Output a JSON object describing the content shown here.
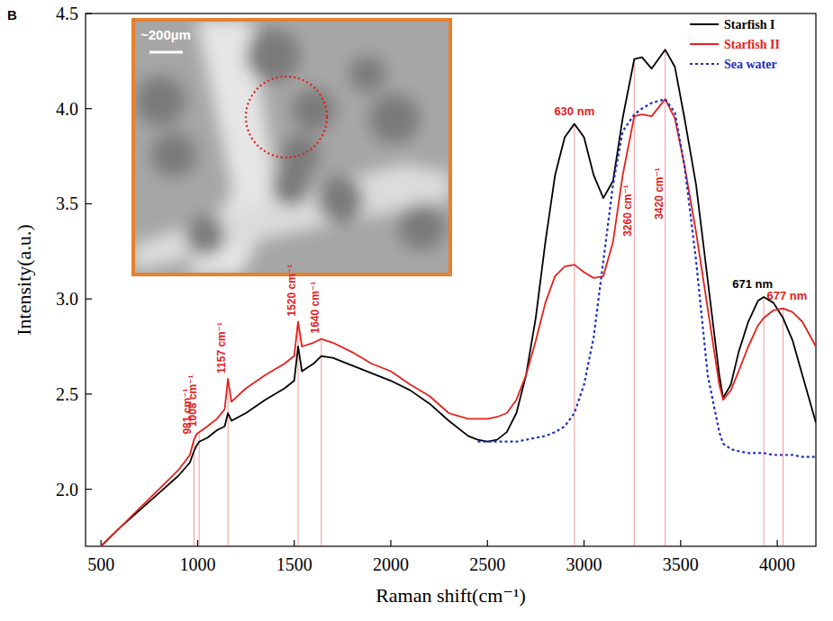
{
  "chart_data": {
    "type": "line",
    "panel": "B",
    "inset_label": "~200µm",
    "x_label": "Raman shift(cm⁻¹)",
    "y_label": "Intensity(a.u.)",
    "xlim": [
      420,
      4200
    ],
    "xticks": [
      500,
      1000,
      1500,
      2000,
      2500,
      3000,
      3500,
      4000
    ],
    "ylim": [
      1.7,
      4.5
    ],
    "yticks": [
      {
        "value": 2,
        "label": "2.0"
      },
      2.5,
      {
        "value": 3,
        "label": "3.0"
      },
      3.5,
      {
        "value": 4,
        "label": "4.0"
      },
      4.5
    ],
    "grid": false,
    "legend": "upper right",
    "x": [
      500,
      600,
      700,
      800,
      900,
      960,
      981,
      995,
      1008,
      1050,
      1100,
      1140,
      1157,
      1175,
      1250,
      1350,
      1450,
      1500,
      1520,
      1540,
      1600,
      1640,
      1700,
      1800,
      1900,
      2000,
      2100,
      2200,
      2300,
      2400,
      2450,
      2500,
      2550,
      2600,
      2650,
      2700,
      2750,
      2800,
      2850,
      2900,
      2950,
      3000,
      3050,
      3100,
      3150,
      3200,
      3260,
      3300,
      3350,
      3420,
      3470,
      3520,
      3580,
      3640,
      3700,
      3720,
      3760,
      3800,
      3850,
      3900,
      3930,
      3980,
      4030,
      4080,
      4130,
      4200
    ],
    "series": [
      {
        "name": "Starfish I",
        "color": "#000000",
        "line_style": "solid",
        "values": [
          1.7,
          1.8,
          1.89,
          1.98,
          2.07,
          2.14,
          2.2,
          2.23,
          2.25,
          2.27,
          2.31,
          2.33,
          2.4,
          2.36,
          2.4,
          2.47,
          2.53,
          2.57,
          2.75,
          2.62,
          2.66,
          2.7,
          2.69,
          2.65,
          2.61,
          2.57,
          2.52,
          2.45,
          2.36,
          2.28,
          2.26,
          2.25,
          2.26,
          2.3,
          2.4,
          2.6,
          2.9,
          3.3,
          3.65,
          3.85,
          3.92,
          3.85,
          3.65,
          3.53,
          3.62,
          3.95,
          4.26,
          4.27,
          4.21,
          4.31,
          4.22,
          3.95,
          3.6,
          3.1,
          2.6,
          2.48,
          2.55,
          2.72,
          2.88,
          2.99,
          3.01,
          2.98,
          2.9,
          2.78,
          2.6,
          2.35
        ]
      },
      {
        "name": "Starfish II",
        "color": "#e3211c",
        "line_style": "solid",
        "values": [
          1.7,
          1.8,
          1.9,
          2.0,
          2.1,
          2.18,
          2.26,
          2.29,
          2.3,
          2.33,
          2.37,
          2.42,
          2.58,
          2.46,
          2.53,
          2.6,
          2.66,
          2.7,
          2.88,
          2.75,
          2.77,
          2.79,
          2.77,
          2.72,
          2.66,
          2.62,
          2.55,
          2.49,
          2.4,
          2.37,
          2.37,
          2.37,
          2.38,
          2.4,
          2.47,
          2.6,
          2.78,
          2.98,
          3.12,
          3.17,
          3.18,
          3.14,
          3.11,
          3.12,
          3.3,
          3.65,
          3.96,
          3.97,
          3.96,
          4.05,
          3.95,
          3.7,
          3.35,
          2.95,
          2.55,
          2.47,
          2.52,
          2.62,
          2.75,
          2.86,
          2.9,
          2.94,
          2.95,
          2.93,
          2.88,
          2.75
        ]
      },
      {
        "name": "Sea water",
        "color": "#1f2fbf",
        "line_style": "dotted",
        "values": [
          null,
          null,
          null,
          null,
          null,
          null,
          null,
          null,
          null,
          null,
          null,
          null,
          null,
          null,
          null,
          null,
          null,
          null,
          null,
          null,
          null,
          null,
          null,
          null,
          null,
          null,
          null,
          null,
          null,
          null,
          2.25,
          2.25,
          2.25,
          2.25,
          2.25,
          2.26,
          2.27,
          2.28,
          2.3,
          2.33,
          2.4,
          2.55,
          2.8,
          3.2,
          3.6,
          3.88,
          3.97,
          4.0,
          4.03,
          4.05,
          3.98,
          3.7,
          3.2,
          2.6,
          2.3,
          2.24,
          2.21,
          2.2,
          2.19,
          2.19,
          2.19,
          2.18,
          2.18,
          2.18,
          2.17,
          2.17
        ]
      }
    ],
    "annotations": [
      {
        "text": "981 cm⁻¹",
        "x": 981,
        "color": "#e3211c"
      },
      {
        "text": "1008 cm⁻¹",
        "x": 1008,
        "color": "#e3211c"
      },
      {
        "text": "1157 cm⁻¹",
        "x": 1157,
        "color": "#e3211c"
      },
      {
        "text": "1520 cm⁻¹",
        "x": 1520,
        "color": "#e3211c"
      },
      {
        "text": "1640 cm⁻¹",
        "x": 1640,
        "color": "#e3211c"
      },
      {
        "text": "630 nm",
        "x": 2950,
        "color": "#e3211c"
      },
      {
        "text": "3260 cm⁻¹",
        "x": 3260,
        "color": "#e3211c"
      },
      {
        "text": "3420 cm⁻¹",
        "x": 3420,
        "color": "#e3211c"
      },
      {
        "text": "671 nm",
        "x": 3930,
        "color": "#000000"
      },
      {
        "text": "677 nm",
        "x": 4030,
        "color": "#e3211c"
      }
    ]
  }
}
